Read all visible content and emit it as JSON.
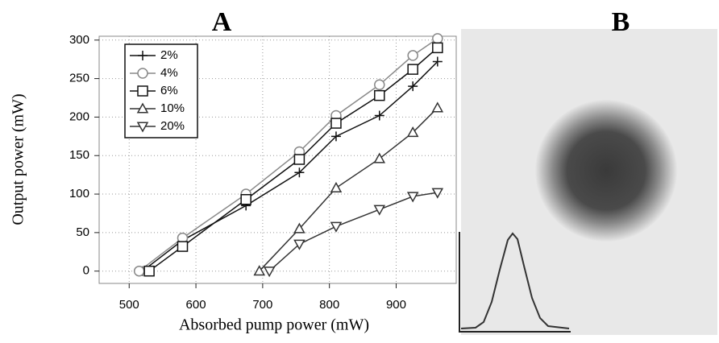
{
  "chart_data": {
    "type": "line",
    "panel_label": "A",
    "x_label": "Absorbed pump power (mW)",
    "y_label": "Output power (mW)",
    "xlim": [
      455,
      990
    ],
    "ylim": [
      -16,
      305
    ],
    "xticks": [
      500,
      600,
      700,
      800,
      900
    ],
    "yticks": [
      0,
      50,
      100,
      150,
      200,
      250,
      300
    ],
    "grid": true,
    "legend": "upper left",
    "series": [
      {
        "name": "2%",
        "color": "#111111",
        "marker": "plus",
        "x": [
          520,
          580,
          675,
          755,
          810,
          875,
          925,
          962
        ],
        "values": [
          0,
          40,
          85,
          128,
          175,
          202,
          240,
          272
        ]
      },
      {
        "name": "4%",
        "color": "#888888",
        "marker": "circle",
        "x": [
          515,
          580,
          675,
          755,
          810,
          875,
          925,
          962
        ],
        "values": [
          0,
          43,
          100,
          155,
          202,
          242,
          280,
          302
        ]
      },
      {
        "name": "6%",
        "color": "#111111",
        "marker": "square",
        "x": [
          530,
          580,
          675,
          755,
          810,
          875,
          925,
          962
        ],
        "values": [
          0,
          32,
          93,
          145,
          192,
          228,
          262,
          290
        ]
      },
      {
        "name": "10%",
        "color": "#333333",
        "marker": "triangle-up",
        "x": [
          695,
          755,
          810,
          875,
          925,
          962
        ],
        "values": [
          0,
          55,
          108,
          146,
          180,
          212
        ]
      },
      {
        "name": "20%",
        "color": "#333333",
        "marker": "triangle-down",
        "x": [
          710,
          755,
          810,
          875,
          925,
          962
        ],
        "values": [
          0,
          35,
          58,
          80,
          97,
          102
        ]
      }
    ]
  },
  "panel_b": {
    "label": "B"
  }
}
